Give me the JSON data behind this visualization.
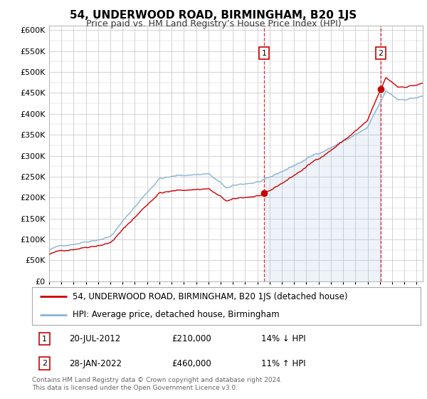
{
  "title": "54, UNDERWOOD ROAD, BIRMINGHAM, B20 1JS",
  "subtitle": "Price paid vs. HM Land Registry’s House Price Index (HPI)",
  "hpi_label": "HPI: Average price, detached house, Birmingham",
  "property_label": "54, UNDERWOOD ROAD, BIRMINGHAM, B20 1JS (detached house)",
  "sale1_date": "20-JUL-2012",
  "sale1_price": 210000,
  "sale1_note": "14% ↓ HPI",
  "sale2_date": "28-JAN-2022",
  "sale2_price": 460000,
  "sale2_note": "11% ↑ HPI",
  "footer": "Contains HM Land Registry data © Crown copyright and database right 2024.\nThis data is licensed under the Open Government Licence v3.0.",
  "hpi_color": "#8ab4d4",
  "hpi_fill_color": "#dceeff",
  "property_color": "#cc0000",
  "sale_marker_color": "#cc0000",
  "dashed_line_color": "#cc0000",
  "ylim_min": 0,
  "ylim_max": 610000,
  "ytick_step": 50000,
  "background_color": "#ffffff",
  "plot_bg_color": "#ffffff",
  "grid_color": "#cccccc",
  "sale1_x": 2012.55,
  "sale2_x": 2022.07
}
